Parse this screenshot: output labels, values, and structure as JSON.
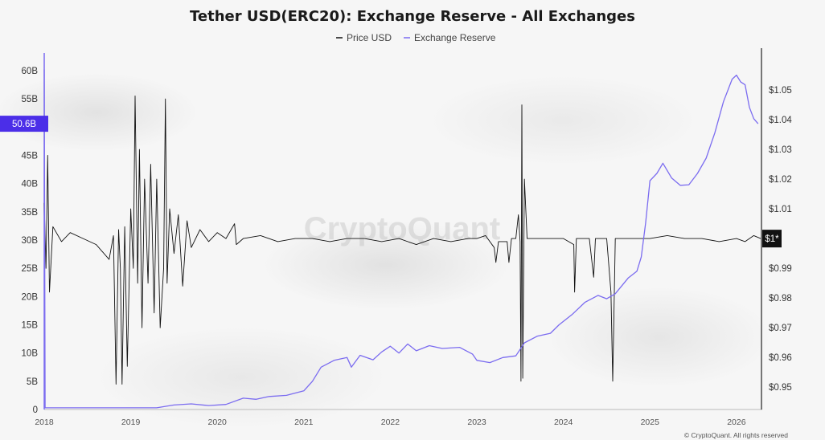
{
  "chart_data": {
    "type": "line",
    "title": "Tether USD(ERC20): Exchange Reserve - All Exchanges",
    "legend": {
      "placement": "top-center"
    },
    "watermark": "CryptoQuant",
    "copyright": "© CryptoQuant. All rights reserved",
    "x_ticks": [
      "2018",
      "2019",
      "2020",
      "2021",
      "2022",
      "2023",
      "2024",
      "2025",
      "2026"
    ],
    "y_left": {
      "ticks": [
        "0",
        "5B",
        "10B",
        "15B",
        "20B",
        "25B",
        "30B",
        "35B",
        "40B",
        "45B",
        "55B",
        "60B"
      ],
      "ylim": [
        0,
        60
      ],
      "unit": "B",
      "current_label": "50.6B",
      "current_value": 50.6
    },
    "y_right": {
      "ticks": [
        "$0.95",
        "$0.96",
        "$0.97",
        "$0.98",
        "$0.99",
        "$1.01",
        "$1.02",
        "$1.03",
        "$1.04",
        "$1.05"
      ],
      "ylim": [
        0.9425,
        1.0565
      ],
      "current_label": "$1*",
      "current_value": 1.0
    },
    "series": [
      {
        "name": "Price USD",
        "axis": "right",
        "color": "#111111",
        "points": [
          [
            2018.0,
            1.012
          ],
          [
            2018.02,
            0.99
          ],
          [
            2018.04,
            1.028
          ],
          [
            2018.06,
            0.982
          ],
          [
            2018.1,
            1.004
          ],
          [
            2018.2,
            0.999
          ],
          [
            2018.3,
            1.002
          ],
          [
            2018.45,
            1.0
          ],
          [
            2018.6,
            0.998
          ],
          [
            2018.75,
            0.993
          ],
          [
            2018.8,
            1.001
          ],
          [
            2018.83,
            0.951
          ],
          [
            2018.86,
            1.003
          ],
          [
            2018.88,
            0.99
          ],
          [
            2018.9,
            0.951
          ],
          [
            2018.93,
            1.004
          ],
          [
            2018.96,
            0.957
          ],
          [
            2019.0,
            1.01
          ],
          [
            2019.03,
            0.99
          ],
          [
            2019.05,
            1.048
          ],
          [
            2019.08,
            0.985
          ],
          [
            2019.1,
            1.03
          ],
          [
            2019.13,
            0.97
          ],
          [
            2019.16,
            1.02
          ],
          [
            2019.2,
            0.985
          ],
          [
            2019.23,
            1.025
          ],
          [
            2019.27,
            0.975
          ],
          [
            2019.3,
            1.02
          ],
          [
            2019.34,
            0.97
          ],
          [
            2019.38,
            0.99
          ],
          [
            2019.4,
            1.047
          ],
          [
            2019.42,
            0.985
          ],
          [
            2019.45,
            1.01
          ],
          [
            2019.5,
            0.995
          ],
          [
            2019.55,
            1.008
          ],
          [
            2019.6,
            0.984
          ],
          [
            2019.65,
            1.006
          ],
          [
            2019.7,
            0.997
          ],
          [
            2019.8,
            1.003
          ],
          [
            2019.9,
            0.999
          ],
          [
            2020.0,
            1.002
          ],
          [
            2020.1,
            1.0
          ],
          [
            2020.2,
            1.005
          ],
          [
            2020.22,
            0.998
          ],
          [
            2020.3,
            1.0
          ],
          [
            2020.5,
            1.001
          ],
          [
            2020.7,
            0.999
          ],
          [
            2020.9,
            1.0
          ],
          [
            2021.1,
            1.0
          ],
          [
            2021.3,
            0.999
          ],
          [
            2021.5,
            1.0
          ],
          [
            2021.7,
            1.0
          ],
          [
            2021.9,
            0.999
          ],
          [
            2022.1,
            1.0
          ],
          [
            2022.3,
            0.998
          ],
          [
            2022.5,
            1.0
          ],
          [
            2022.7,
            0.999
          ],
          [
            2022.9,
            1.0
          ],
          [
            2023.0,
            1.0
          ],
          [
            2023.1,
            1.001
          ],
          [
            2023.2,
            0.997
          ],
          [
            2023.22,
            0.992
          ],
          [
            2023.25,
            0.999
          ],
          [
            2023.35,
            0.999
          ],
          [
            2023.37,
            0.992
          ],
          [
            2023.4,
            1.0
          ],
          [
            2023.45,
            1.0
          ],
          [
            2023.48,
            1.008
          ],
          [
            2023.5,
            0.999
          ],
          [
            2023.51,
            0.952
          ],
          [
            2023.52,
            1.045
          ],
          [
            2023.53,
            0.953
          ],
          [
            2023.55,
            1.02
          ],
          [
            2023.58,
            1.0
          ],
          [
            2023.7,
            1.0
          ],
          [
            2023.9,
            1.0
          ],
          [
            2024.0,
            1.0
          ],
          [
            2024.12,
            0.998
          ],
          [
            2024.13,
            0.982
          ],
          [
            2024.15,
            1.0
          ],
          [
            2024.3,
            1.0
          ],
          [
            2024.35,
            0.987
          ],
          [
            2024.37,
            1.0
          ],
          [
            2024.5,
            1.0
          ],
          [
            2024.55,
            0.982
          ],
          [
            2024.57,
            0.952
          ],
          [
            2024.6,
            1.0
          ],
          [
            2024.8,
            1.0
          ],
          [
            2025.0,
            1.0
          ],
          [
            2025.2,
            1.001
          ],
          [
            2025.4,
            1.0
          ],
          [
            2025.6,
            1.0
          ],
          [
            2025.8,
            0.999
          ],
          [
            2026.0,
            1.0
          ],
          [
            2026.1,
            0.999
          ],
          [
            2026.2,
            1.001
          ],
          [
            2026.28,
            1.0
          ]
        ]
      },
      {
        "name": "Exchange Reserve",
        "axis": "left",
        "color": "#7b6cf0",
        "points": [
          [
            2018.0,
            60.2
          ],
          [
            2018.01,
            0.3
          ],
          [
            2018.5,
            0.3
          ],
          [
            2019.0,
            0.3
          ],
          [
            2019.3,
            0.3
          ],
          [
            2019.5,
            0.8
          ],
          [
            2019.7,
            1.0
          ],
          [
            2019.9,
            0.7
          ],
          [
            2020.1,
            0.9
          ],
          [
            2020.3,
            2.0
          ],
          [
            2020.45,
            1.8
          ],
          [
            2020.6,
            2.3
          ],
          [
            2020.8,
            2.5
          ],
          [
            2021.0,
            3.3
          ],
          [
            2021.1,
            5.0
          ],
          [
            2021.2,
            7.5
          ],
          [
            2021.35,
            8.7
          ],
          [
            2021.5,
            9.2
          ],
          [
            2021.55,
            7.5
          ],
          [
            2021.65,
            9.6
          ],
          [
            2021.8,
            8.8
          ],
          [
            2021.9,
            10.2
          ],
          [
            2022.0,
            11.2
          ],
          [
            2022.1,
            10.0
          ],
          [
            2022.2,
            11.6
          ],
          [
            2022.3,
            10.4
          ],
          [
            2022.45,
            11.3
          ],
          [
            2022.6,
            10.8
          ],
          [
            2022.8,
            11.0
          ],
          [
            2022.95,
            9.8
          ],
          [
            2023.0,
            8.7
          ],
          [
            2023.15,
            8.3
          ],
          [
            2023.3,
            9.2
          ],
          [
            2023.45,
            9.5
          ],
          [
            2023.55,
            11.8
          ],
          [
            2023.7,
            13.0
          ],
          [
            2023.85,
            13.5
          ],
          [
            2023.95,
            15.0
          ],
          [
            2024.1,
            16.8
          ],
          [
            2024.25,
            19.0
          ],
          [
            2024.4,
            20.2
          ],
          [
            2024.5,
            19.6
          ],
          [
            2024.6,
            20.5
          ],
          [
            2024.75,
            23.3
          ],
          [
            2024.85,
            24.5
          ],
          [
            2024.9,
            27.0
          ],
          [
            2024.95,
            33.0
          ],
          [
            2025.0,
            40.5
          ],
          [
            2025.08,
            41.8
          ],
          [
            2025.15,
            43.6
          ],
          [
            2025.25,
            41.0
          ],
          [
            2025.35,
            39.7
          ],
          [
            2025.45,
            39.8
          ],
          [
            2025.55,
            41.8
          ],
          [
            2025.65,
            44.5
          ],
          [
            2025.75,
            49.0
          ],
          [
            2025.85,
            54.5
          ],
          [
            2025.95,
            58.5
          ],
          [
            2026.0,
            59.2
          ],
          [
            2026.05,
            58.0
          ],
          [
            2026.1,
            57.5
          ],
          [
            2026.15,
            53.5
          ],
          [
            2026.2,
            51.5
          ],
          [
            2026.25,
            50.6
          ]
        ]
      }
    ]
  }
}
